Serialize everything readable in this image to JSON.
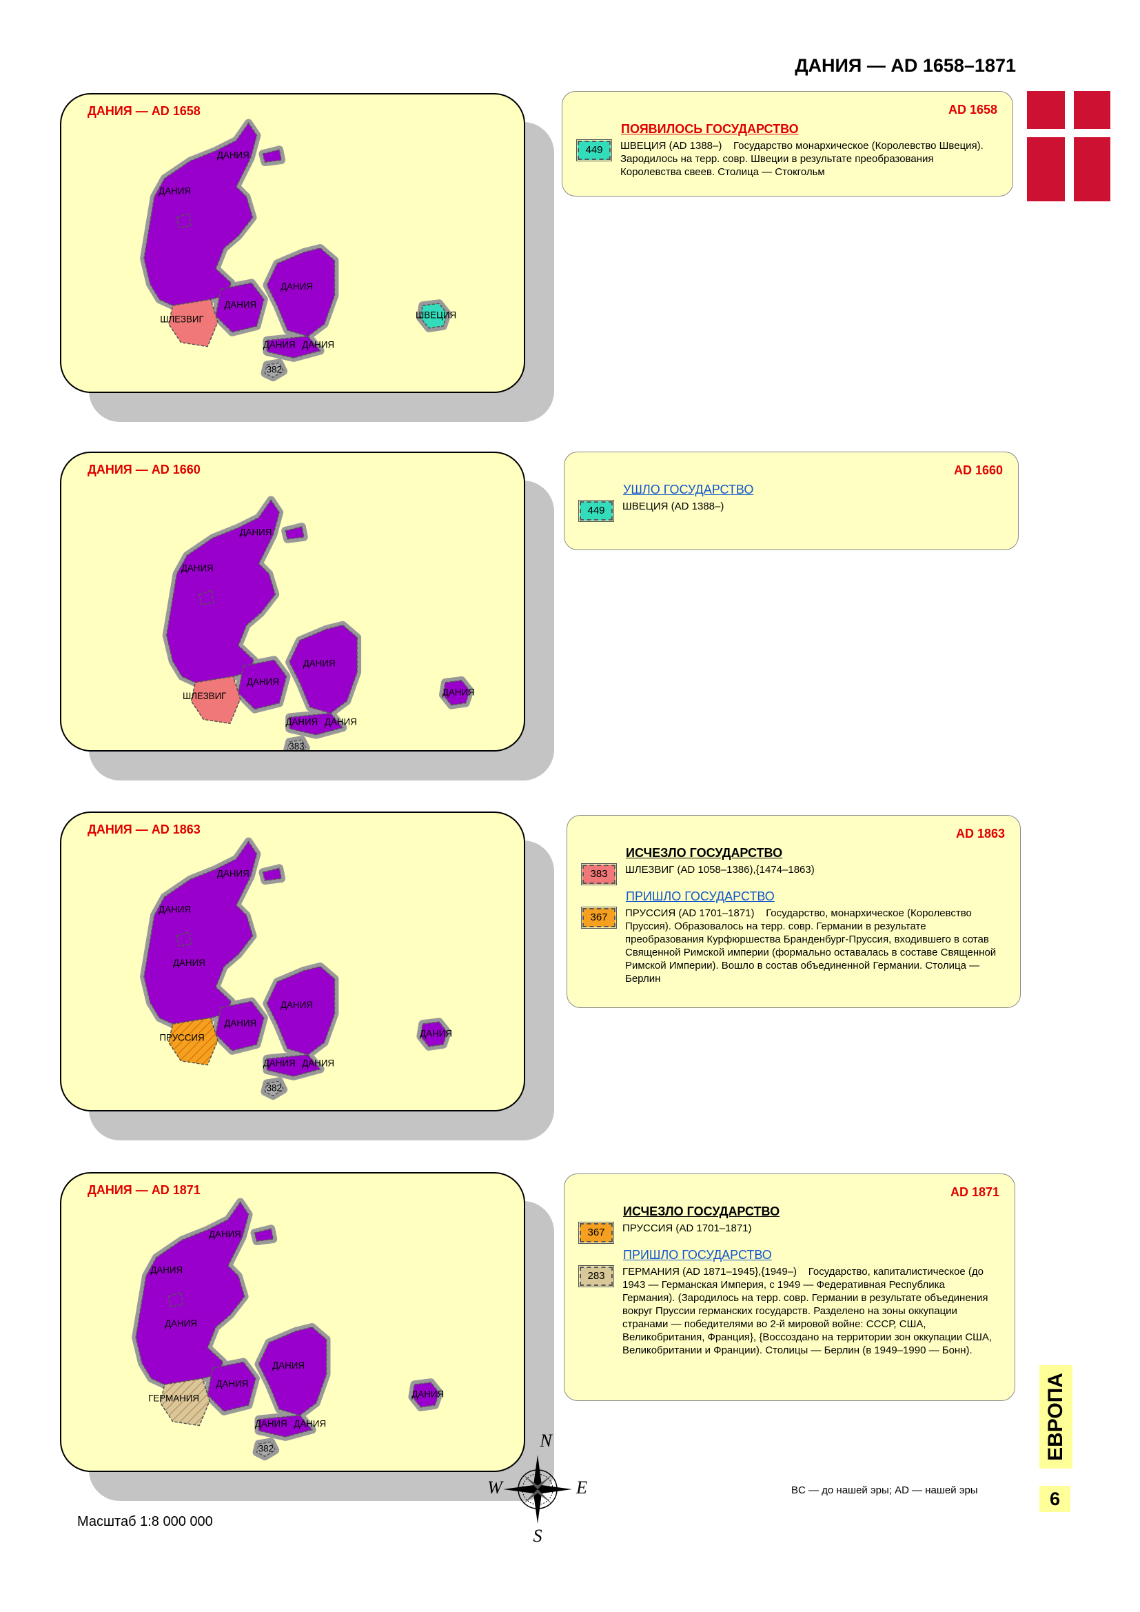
{
  "header": {
    "title": "ДАНИЯ — AD 1658–1871"
  },
  "panels": [
    {
      "map": {
        "title": "ДАНИЯ — AD 1658",
        "labels": [
          "ДАНИЯ",
          "ДАНИЯ",
          "ДАНИЯ",
          "ДАНИЯ",
          "ДАНИЯ",
          "ДАНИЯ",
          "ШЛЕЗВИГ",
          "ШВЕЦИЯ",
          "382"
        ]
      },
      "info": {
        "year": "AD 1658",
        "sections": [
          {
            "heading": "ПОЯВИЛОСЬ ГОСУДАРСТВО",
            "color": "#e00000",
            "bold": true,
            "entries": [
              {
                "code": "449",
                "code_color": "#33ddbb",
                "name": "ШВЕЦИЯ  (AD 1388–)",
                "description": "Государство монархическое (Королевство Швеция). Зародилось на терр. совр. Швеции в результате преобразования Королевства свеев. Столица — Стокгольм"
              }
            ]
          }
        ]
      }
    },
    {
      "map": {
        "title": "ДАНИЯ — AD 1660",
        "labels": [
          "ДАНИЯ",
          "ДАНИЯ",
          "ДАНИЯ",
          "ДАНИЯ",
          "ДАНИЯ",
          "ДАНИЯ",
          "ШЛЕЗВИГ",
          "ДАНИЯ",
          "383"
        ]
      },
      "info": {
        "year": "AD 1660",
        "sections": [
          {
            "heading": "УШЛО ГОСУДАРСТВО",
            "color": "#1155cc",
            "bold": false,
            "entries": [
              {
                "code": "449",
                "code_color": "#33ddbb",
                "name": "ШВЕЦИЯ  (AD 1388–)",
                "description": ""
              }
            ]
          }
        ]
      }
    },
    {
      "map": {
        "title": "ДАНИЯ — AD 1863",
        "labels": [
          "ДАНИЯ",
          "ДАНИЯ",
          "ДАНИЯ",
          "ДАНИЯ",
          "ДАНИЯ",
          "ДАНИЯ",
          "ПРУССИЯ",
          "ДАНИЯ",
          "382",
          "ДАНИЯ"
        ]
      },
      "info": {
        "year": "AD 1863",
        "sections": [
          {
            "heading": "ИСЧЕЗЛО ГОСУДАРСТВО",
            "color": "#000000",
            "bold": true,
            "entries": [
              {
                "code": "383",
                "code_color": "#f07878",
                "name": "ШЛЕЗВИГ (AD 1058–1386),{1474–1863)",
                "description": ""
              }
            ]
          },
          {
            "heading": "ПРИШЛО ГОСУДАРСТВО",
            "color": "#1155cc",
            "bold": false,
            "entries": [
              {
                "code": "367",
                "code_color": "#f5a020",
                "name": "ПРУССИЯ  (AD 1701–1871)",
                "description": "Государство, монархическое (Королевство Пруссия). Образовалось на терр. совр. Германии в результате преобразования Курфюршества Бранденбург-Пруссия, входившего в сотав Священной Римской империи (формально оставалась в составе Священной Римской Империи). Вошло в состав объединенной Германии. Столица — Берлин"
              }
            ]
          }
        ]
      }
    },
    {
      "map": {
        "title": "ДАНИЯ — AD 1871",
        "labels": [
          "ДАНИЯ",
          "ДАНИЯ",
          "ДАНИЯ",
          "ДАНИЯ",
          "ДАНИЯ",
          "ДАНИЯ",
          "ГЕРМАНИЯ",
          "ДАНИЯ",
          "382",
          "ДАНИЯ"
        ]
      },
      "info": {
        "year": "AD 1871",
        "sections": [
          {
            "heading": "ИСЧЕЗЛО ГОСУДАРСТВО",
            "color": "#000000",
            "bold": true,
            "entries": [
              {
                "code": "367",
                "code_color": "#f5a020",
                "name": "ПРУССИЯ  (AD 1701–1871)",
                "description": ""
              }
            ]
          },
          {
            "heading": "ПРИШЛО ГОСУДАРСТВО",
            "color": "#1155cc",
            "bold": false,
            "entries": [
              {
                "code": "283",
                "code_color": "#d8c898",
                "name": "ГЕРМАНИЯ  (AD 1871–1945},{1949–)",
                "description": "Государство, капиталистическое (до 1943 — Германская Империя, с 1949 — Федеративная Республика Германия). (Зародилось на терр. совр. Германии в результате объединения вокруг Пруссии германских государств. Разделено на зоны окку­пации странами — победителями во 2-й мировой войне: СССР, США, Великобритания, Франция}, {Воссоздано на территории зон оккупации США, Великобритании и Франции). Столицы — Берлин (в 1949–1990 — Бонн)."
              }
            ]
          }
        ]
      }
    }
  ],
  "compass": [
    "N",
    "W",
    "E",
    "S"
  ],
  "footer": {
    "note": "BC — до нашей эры; AD — нашей эры",
    "scale": "Масштаб 1:8 000 000",
    "region": "ЕВРОПА",
    "page": "6"
  }
}
